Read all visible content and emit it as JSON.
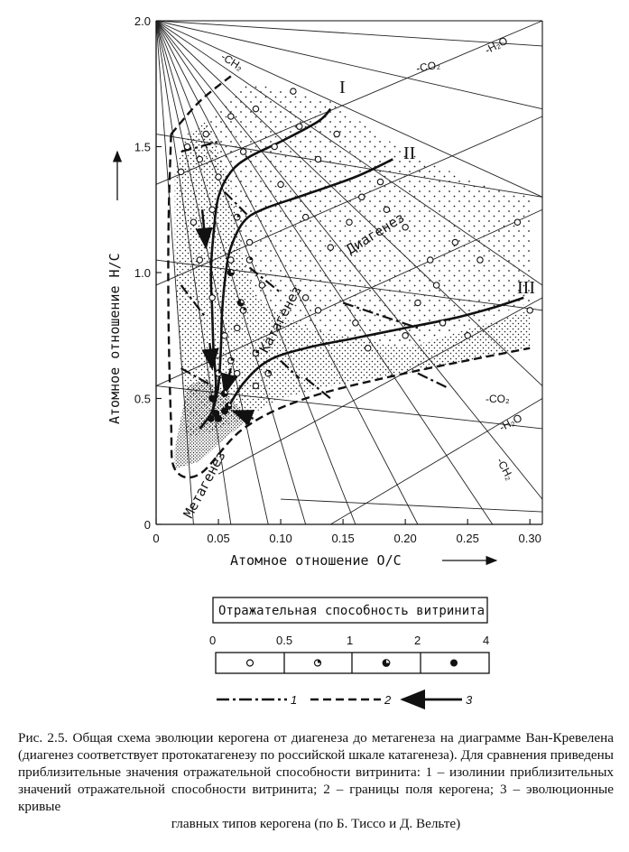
{
  "chart_data": {
    "type": "scatter",
    "xlabel": "Атомное отношение O/C",
    "ylabel": "Атомное отношение H/C",
    "xlim": [
      0,
      0.31
    ],
    "ylim": [
      0,
      2.0
    ],
    "x_ticks": [
      "0",
      "0.05",
      "0.10",
      "0.15",
      "0.20",
      "0.25",
      "0.30"
    ],
    "y_ticks": [
      "0",
      "0.5",
      "1.0",
      "1.5",
      "2.0"
    ],
    "zones": [
      "Диагенез",
      "Катагенез",
      "Метагенез"
    ],
    "curve_labels": [
      "I",
      "II",
      "III"
    ],
    "arrow_labels": {
      "ch2_top": "-CH₂",
      "h2o_top": "-H₂O",
      "co2_top": "-CO₂",
      "co2_bottom": "-CO₂",
      "h2o_bottom": "-H₂O",
      "ch2_bottom": "-CH₂"
    },
    "series": [
      {
        "name": "I",
        "points": [
          [
            0.035,
            0.38
          ],
          [
            0.045,
            0.45
          ],
          [
            0.048,
            0.55
          ],
          [
            0.046,
            0.7
          ],
          [
            0.045,
            0.85
          ],
          [
            0.044,
            1.0
          ],
          [
            0.046,
            1.15
          ],
          [
            0.05,
            1.3
          ],
          [
            0.06,
            1.4
          ],
          [
            0.075,
            1.46
          ],
          [
            0.1,
            1.52
          ],
          [
            0.13,
            1.6
          ],
          [
            0.14,
            1.65
          ]
        ]
      },
      {
        "name": "II",
        "points": [
          [
            0.045,
            0.44
          ],
          [
            0.05,
            0.55
          ],
          [
            0.052,
            0.7
          ],
          [
            0.053,
            0.85
          ],
          [
            0.056,
            1.0
          ],
          [
            0.06,
            1.1
          ],
          [
            0.07,
            1.2
          ],
          [
            0.085,
            1.25
          ],
          [
            0.12,
            1.31
          ],
          [
            0.16,
            1.38
          ],
          [
            0.19,
            1.45
          ]
        ]
      },
      {
        "name": "III",
        "points": [
          [
            0.055,
            0.44
          ],
          [
            0.07,
            0.56
          ],
          [
            0.09,
            0.65
          ],
          [
            0.12,
            0.7
          ],
          [
            0.16,
            0.74
          ],
          [
            0.2,
            0.78
          ],
          [
            0.24,
            0.82
          ],
          [
            0.27,
            0.86
          ],
          [
            0.295,
            0.9
          ]
        ]
      }
    ],
    "vitrinite_points": {
      "open": [
        [
          0.11,
          1.72
        ],
        [
          0.08,
          1.65
        ],
        [
          0.115,
          1.58
        ],
        [
          0.06,
          1.62
        ],
        [
          0.095,
          1.5
        ],
        [
          0.13,
          1.45
        ],
        [
          0.145,
          1.55
        ],
        [
          0.07,
          1.48
        ],
        [
          0.04,
          1.55
        ],
        [
          0.035,
          1.45
        ],
        [
          0.05,
          1.38
        ],
        [
          0.1,
          1.35
        ],
        [
          0.12,
          1.22
        ],
        [
          0.14,
          1.1
        ],
        [
          0.155,
          1.2
        ],
        [
          0.165,
          1.3
        ],
        [
          0.18,
          1.36
        ],
        [
          0.185,
          1.25
        ],
        [
          0.2,
          1.18
        ],
        [
          0.22,
          1.05
        ],
        [
          0.225,
          0.95
        ],
        [
          0.24,
          1.12
        ],
        [
          0.26,
          1.05
        ],
        [
          0.29,
          1.2
        ],
        [
          0.3,
          0.85
        ],
        [
          0.21,
          0.88
        ],
        [
          0.23,
          0.8
        ],
        [
          0.25,
          0.75
        ],
        [
          0.2,
          0.75
        ],
        [
          0.16,
          0.8
        ],
        [
          0.17,
          0.7
        ],
        [
          0.12,
          0.9
        ],
        [
          0.13,
          0.85
        ],
        [
          0.075,
          1.12
        ],
        [
          0.06,
          1.05
        ],
        [
          0.085,
          0.95
        ],
        [
          0.03,
          1.2
        ],
        [
          0.035,
          1.05
        ],
        [
          0.045,
          0.9
        ],
        [
          0.055,
          0.75
        ],
        [
          0.065,
          0.6
        ],
        [
          0.08,
          0.55
        ],
        [
          0.065,
          0.78
        ],
        [
          0.025,
          1.5
        ],
        [
          0.02,
          1.4
        ],
        [
          0.045,
          1.25
        ]
      ],
      "half": [
        [
          0.065,
          1.22
        ],
        [
          0.075,
          1.05
        ],
        [
          0.07,
          0.85
        ],
        [
          0.06,
          0.65
        ],
        [
          0.05,
          0.6
        ],
        [
          0.08,
          0.68
        ],
        [
          0.09,
          0.6
        ]
      ],
      "threequarter": [
        [
          0.06,
          1.0
        ],
        [
          0.068,
          0.88
        ],
        [
          0.055,
          0.52
        ],
        [
          0.058,
          0.47
        ]
      ],
      "full": [
        [
          0.045,
          0.5
        ],
        [
          0.048,
          0.44
        ],
        [
          0.05,
          0.42
        ],
        [
          0.055,
          0.45
        ],
        [
          0.044,
          0.42
        ]
      ]
    }
  },
  "legend": {
    "title": "Отражательная способность витринита",
    "ticks": [
      "0",
      "0.5",
      "1",
      "2",
      "4"
    ],
    "line_items": [
      {
        "number": "1",
        "style": "dash-dot"
      },
      {
        "number": "2",
        "style": "dashed"
      },
      {
        "number": "3",
        "style": "arrow"
      }
    ]
  },
  "caption": {
    "text": "Рис. 2.5. Общая схема эволюции керогена от диагенеза до метагенеза на диаграмме Ван-Кревелена (диагенез соответствует протокатагенезу по российской шкале катагенеза). Для сравнения приведены приблизительные значения отражательной способности витринита: 1 – изолинии приблизительных значений отражательной способности витринита; 2 – границы поля керогена; 3 – эволюционные кривые",
    "last_line": "главных типов керогена (по Б. Тиссо и Д. Вельте)"
  }
}
